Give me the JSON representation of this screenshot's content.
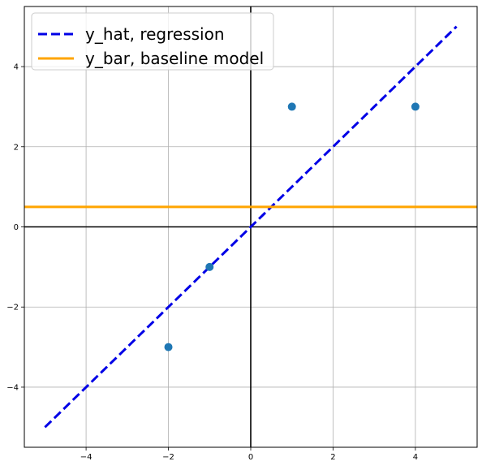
{
  "chart_data": {
    "type": "scatter",
    "xlim": [
      -5.5,
      5.5
    ],
    "ylim": [
      -5.5,
      5.5
    ],
    "xticks": [
      -4,
      -2,
      0,
      2,
      4
    ],
    "yticks": [
      -4,
      -2,
      0,
      2,
      4
    ],
    "xtick_labels": [
      "−4",
      "−2",
      "0",
      "2",
      "4"
    ],
    "ytick_labels": [
      "−4",
      "−2",
      "0",
      "2",
      "4"
    ],
    "grid": true,
    "legend_position": "top-left",
    "points": {
      "x": [
        -2,
        -1,
        1,
        4
      ],
      "y": [
        -3,
        -1,
        3,
        3
      ],
      "color": "#1f77b4"
    },
    "series": [
      {
        "name": "y_hat, regression",
        "kind": "line",
        "style": "dashed",
        "color": "#0000e6",
        "x": [
          -5,
          5
        ],
        "y": [
          -5,
          5
        ]
      },
      {
        "name": "y_bar, baseline model",
        "kind": "hline",
        "style": "solid",
        "color": "#ffa500",
        "y": 0.5
      }
    ],
    "axis_lines": {
      "x": 0,
      "y": 0,
      "color": "#000000"
    }
  }
}
